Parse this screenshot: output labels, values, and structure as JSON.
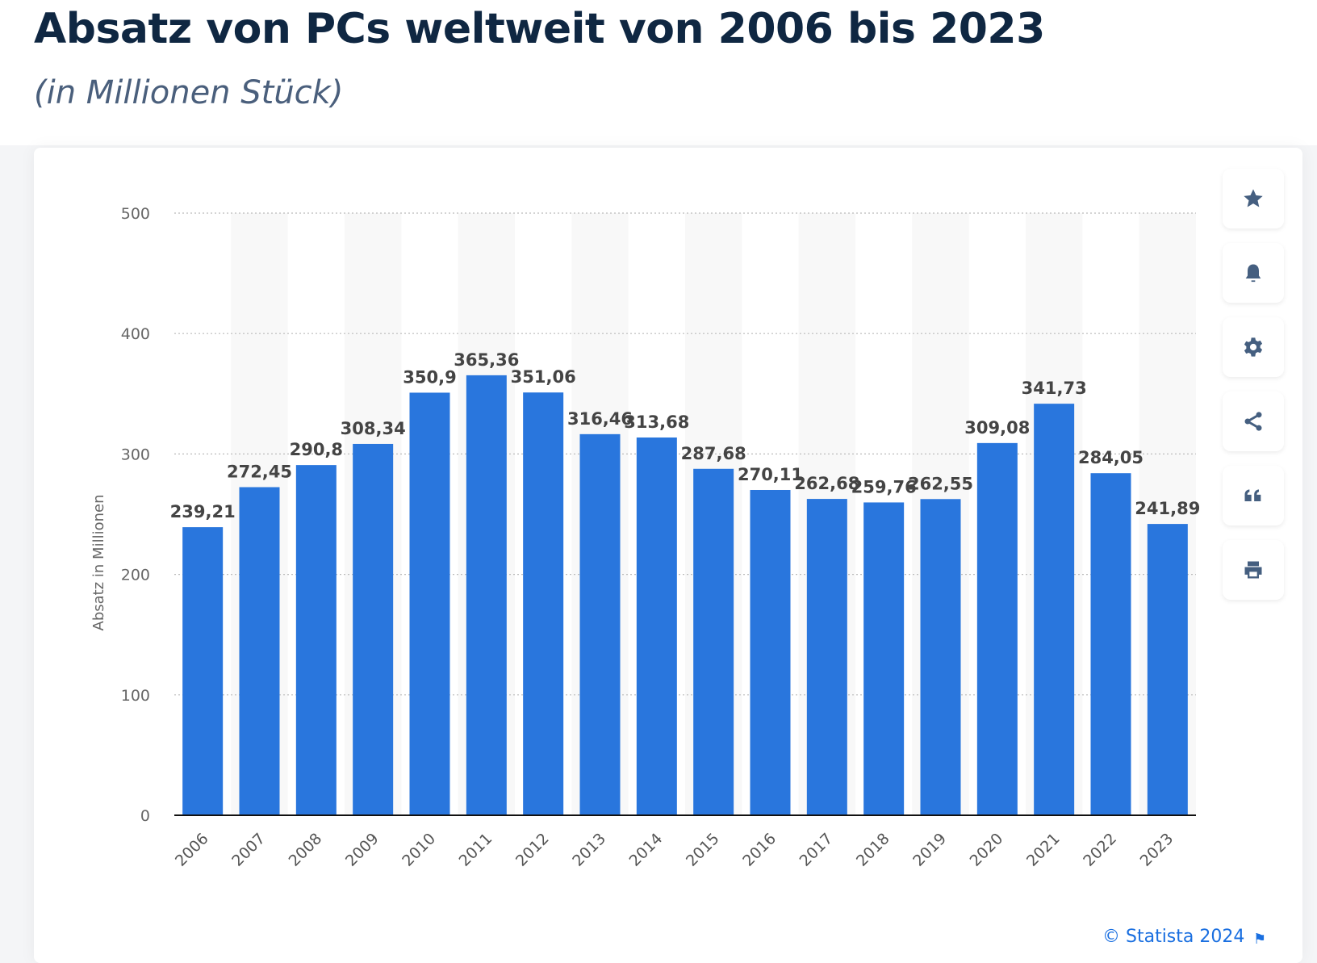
{
  "header": {
    "title": "Absatz von PCs weltweit von 2006 bis 2023",
    "subtitle": "(in Millionen Stück)"
  },
  "toolbar": [
    "star-icon",
    "bell-icon",
    "gear-icon",
    "share-icon",
    "quote-icon",
    "print-icon"
  ],
  "footer": {
    "credit": "© Statista 2024"
  },
  "colors": {
    "bar": "#2976dd",
    "title": "#0f2742"
  },
  "chart_data": {
    "type": "bar",
    "title": "Absatz von PCs weltweit von 2006 bis 2023",
    "subtitle": "(in Millionen Stück)",
    "xlabel": "",
    "ylabel": "Absatz in Millionen",
    "ylim": [
      0,
      500
    ],
    "yticks": [
      0,
      100,
      200,
      300,
      400,
      500
    ],
    "grid": true,
    "categories": [
      "2006",
      "2007",
      "2008",
      "2009",
      "2010",
      "2011",
      "2012",
      "2013",
      "2014",
      "2015",
      "2016",
      "2017",
      "2018",
      "2019",
      "2020",
      "2021",
      "2022",
      "2023"
    ],
    "values": [
      239.21,
      272.45,
      290.8,
      308.34,
      350.9,
      365.36,
      351.06,
      316.46,
      313.68,
      287.68,
      270.11,
      262.68,
      259.76,
      262.55,
      309.08,
      341.73,
      284.05,
      241.89
    ],
    "labels": [
      "239,21",
      "272,45",
      "290,8",
      "308,34",
      "350,9",
      "365,36",
      "351,06",
      "316,46",
      "313,68",
      "287,68",
      "270,11",
      "262,68",
      "259,76",
      "262,55",
      "309,08",
      "341,73",
      "284,05",
      "241,89"
    ]
  }
}
